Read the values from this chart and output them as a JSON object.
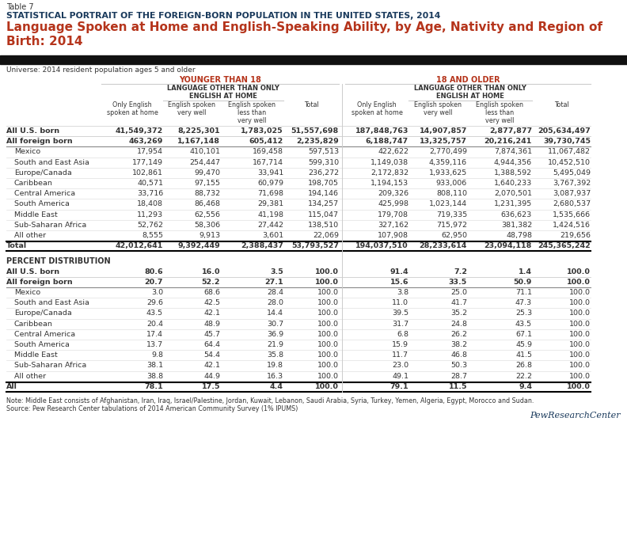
{
  "table_num": "Table 7",
  "supertitle": "STATISTICAL PORTRAIT OF THE FOREIGN-BORN POPULATION IN THE UNITED STATES, 2014",
  "title": "Language Spoken at Home and English-Speaking Ability, by Age, Nativity and Region of\nBirth: 2014",
  "universe": "Universe: 2014 resident population ages 5 and older",
  "col_groups": [
    "YOUNGER THAN 18",
    "18 AND OLDER"
  ],
  "sub_group": "LANGUAGE OTHER THAN ONLY\nENGLISH AT HOME",
  "col_headers": [
    "Only English\nspoken at home",
    "English spoken\nvery well",
    "English spoken\nless than\nvery well",
    "Total",
    "Only English\nspoken at home",
    "English spoken\nvery well",
    "English spoken\nless than\nvery well",
    "Total"
  ],
  "count_rows": [
    {
      "label": "All U.S. born",
      "bold": true,
      "indent": 0,
      "values": [
        "41,549,372",
        "8,225,301",
        "1,783,025",
        "51,557,698",
        "187,848,763",
        "14,907,857",
        "2,877,877",
        "205,634,497"
      ]
    },
    {
      "label": "All foreign born",
      "bold": true,
      "indent": 0,
      "values": [
        "463,269",
        "1,167,148",
        "605,412",
        "2,235,829",
        "6,188,747",
        "13,325,757",
        "20,216,241",
        "39,730,745"
      ]
    },
    {
      "label": "Mexico",
      "bold": false,
      "indent": 1,
      "values": [
        "17,954",
        "410,101",
        "169,458",
        "597,513",
        "422,622",
        "2,770,499",
        "7,874,361",
        "11,067,482"
      ]
    },
    {
      "label": "South and East Asia",
      "bold": false,
      "indent": 1,
      "values": [
        "177,149",
        "254,447",
        "167,714",
        "599,310",
        "1,149,038",
        "4,359,116",
        "4,944,356",
        "10,452,510"
      ]
    },
    {
      "label": "Europe/Canada",
      "bold": false,
      "indent": 1,
      "values": [
        "102,861",
        "99,470",
        "33,941",
        "236,272",
        "2,172,832",
        "1,933,625",
        "1,388,592",
        "5,495,049"
      ]
    },
    {
      "label": "Caribbean",
      "bold": false,
      "indent": 1,
      "values": [
        "40,571",
        "97,155",
        "60,979",
        "198,705",
        "1,194,153",
        "933,006",
        "1,640,233",
        "3,767,392"
      ]
    },
    {
      "label": "Central America",
      "bold": false,
      "indent": 1,
      "values": [
        "33,716",
        "88,732",
        "71,698",
        "194,146",
        "209,326",
        "808,110",
        "2,070,501",
        "3,087,937"
      ]
    },
    {
      "label": "South America",
      "bold": false,
      "indent": 1,
      "values": [
        "18,408",
        "86,468",
        "29,381",
        "134,257",
        "425,998",
        "1,023,144",
        "1,231,395",
        "2,680,537"
      ]
    },
    {
      "label": "Middle East",
      "bold": false,
      "indent": 1,
      "values": [
        "11,293",
        "62,556",
        "41,198",
        "115,047",
        "179,708",
        "719,335",
        "636,623",
        "1,535,666"
      ]
    },
    {
      "label": "Sub-Saharan Africa",
      "bold": false,
      "indent": 1,
      "values": [
        "52,762",
        "58,306",
        "27,442",
        "138,510",
        "327,162",
        "715,972",
        "381,382",
        "1,424,516"
      ]
    },
    {
      "label": "All other",
      "bold": false,
      "indent": 1,
      "values": [
        "8,555",
        "9,913",
        "3,601",
        "22,069",
        "107,908",
        "62,950",
        "48,798",
        "219,656"
      ]
    },
    {
      "label": "Total",
      "bold": true,
      "indent": 0,
      "values": [
        "42,012,641",
        "9,392,449",
        "2,388,437",
        "53,793,527",
        "194,037,510",
        "28,233,614",
        "23,094,118",
        "245,365,242"
      ]
    }
  ],
  "pct_section_label": "PERCENT DISTRIBUTION",
  "pct_rows": [
    {
      "label": "All U.S. born",
      "bold": true,
      "indent": 0,
      "values": [
        "80.6",
        "16.0",
        "3.5",
        "100.0",
        "91.4",
        "7.2",
        "1.4",
        "100.0"
      ]
    },
    {
      "label": "All foreign born",
      "bold": true,
      "indent": 0,
      "values": [
        "20.7",
        "52.2",
        "27.1",
        "100.0",
        "15.6",
        "33.5",
        "50.9",
        "100.0"
      ]
    },
    {
      "label": "Mexico",
      "bold": false,
      "indent": 1,
      "values": [
        "3.0",
        "68.6",
        "28.4",
        "100.0",
        "3.8",
        "25.0",
        "71.1",
        "100.0"
      ]
    },
    {
      "label": "South and East Asia",
      "bold": false,
      "indent": 1,
      "values": [
        "29.6",
        "42.5",
        "28.0",
        "100.0",
        "11.0",
        "41.7",
        "47.3",
        "100.0"
      ]
    },
    {
      "label": "Europe/Canada",
      "bold": false,
      "indent": 1,
      "values": [
        "43.5",
        "42.1",
        "14.4",
        "100.0",
        "39.5",
        "35.2",
        "25.3",
        "100.0"
      ]
    },
    {
      "label": "Caribbean",
      "bold": false,
      "indent": 1,
      "values": [
        "20.4",
        "48.9",
        "30.7",
        "100.0",
        "31.7",
        "24.8",
        "43.5",
        "100.0"
      ]
    },
    {
      "label": "Central America",
      "bold": false,
      "indent": 1,
      "values": [
        "17.4",
        "45.7",
        "36.9",
        "100.0",
        "6.8",
        "26.2",
        "67.1",
        "100.0"
      ]
    },
    {
      "label": "South America",
      "bold": false,
      "indent": 1,
      "values": [
        "13.7",
        "64.4",
        "21.9",
        "100.0",
        "15.9",
        "38.2",
        "45.9",
        "100.0"
      ]
    },
    {
      "label": "Middle East",
      "bold": false,
      "indent": 1,
      "values": [
        "9.8",
        "54.4",
        "35.8",
        "100.0",
        "11.7",
        "46.8",
        "41.5",
        "100.0"
      ]
    },
    {
      "label": "Sub-Saharan Africa",
      "bold": false,
      "indent": 1,
      "values": [
        "38.1",
        "42.1",
        "19.8",
        "100.0",
        "23.0",
        "50.3",
        "26.8",
        "100.0"
      ]
    },
    {
      "label": "All other",
      "bold": false,
      "indent": 1,
      "values": [
        "38.8",
        "44.9",
        "16.3",
        "100.0",
        "49.1",
        "28.7",
        "22.2",
        "100.0"
      ]
    },
    {
      "label": "All",
      "bold": true,
      "indent": 0,
      "values": [
        "78.1",
        "17.5",
        "4.4",
        "100.0",
        "79.1",
        "11.5",
        "9.4",
        "100.0"
      ]
    }
  ],
  "note": "Note: Middle East consists of Afghanistan, Iran, Iraq, Israel/Palestine, Jordan, Kuwait, Lebanon, Saudi Arabia, Syria, Turkey, Yemen, Algeria, Egypt, Morocco and Sudan.",
  "source": "Source: Pew Research Center tabulations of 2014 American Community Survey (1% IPUMS)",
  "pew_logo": "PewResearchCenter",
  "colors": {
    "dark_blue": "#1a3a5c",
    "orange_red": "#b5341b",
    "black": "#000000",
    "dark_gray": "#333333",
    "medium_gray": "#888888",
    "light_gray": "#cccccc",
    "white": "#ffffff",
    "header_bg": "#111111"
  }
}
